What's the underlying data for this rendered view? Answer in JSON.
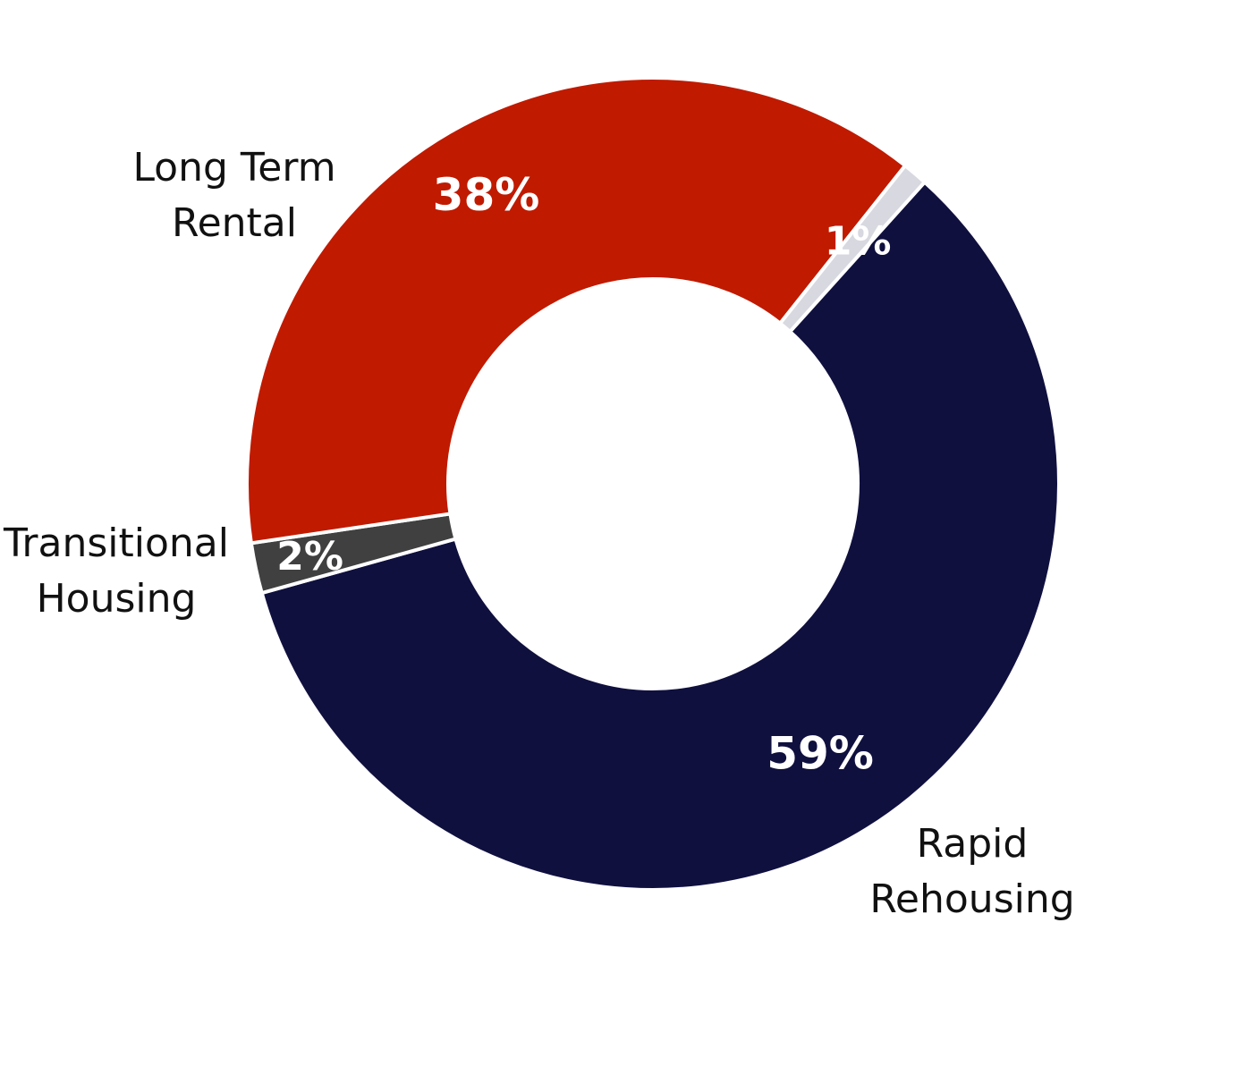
{
  "chart_data": {
    "type": "pie",
    "variant": "donut",
    "title": "",
    "slices": [
      {
        "key": "rapid",
        "label": [
          "Rapid",
          "Rehousing"
        ],
        "value": 59,
        "value_label": "59%",
        "color": "#10103f"
      },
      {
        "key": "transitional",
        "label": [
          "Transitional",
          "Housing"
        ],
        "value": 2,
        "value_label": "2%",
        "color": "#404040"
      },
      {
        "key": "longterm",
        "label": [
          "Long Term",
          "Rental"
        ],
        "value": 38,
        "value_label": "38%",
        "color": "#c01a00"
      },
      {
        "key": "other",
        "label": [],
        "value": 1,
        "value_label": "1%",
        "color": "#d8d8e0"
      }
    ],
    "legend": "none",
    "separator_color": "#ffffff"
  }
}
